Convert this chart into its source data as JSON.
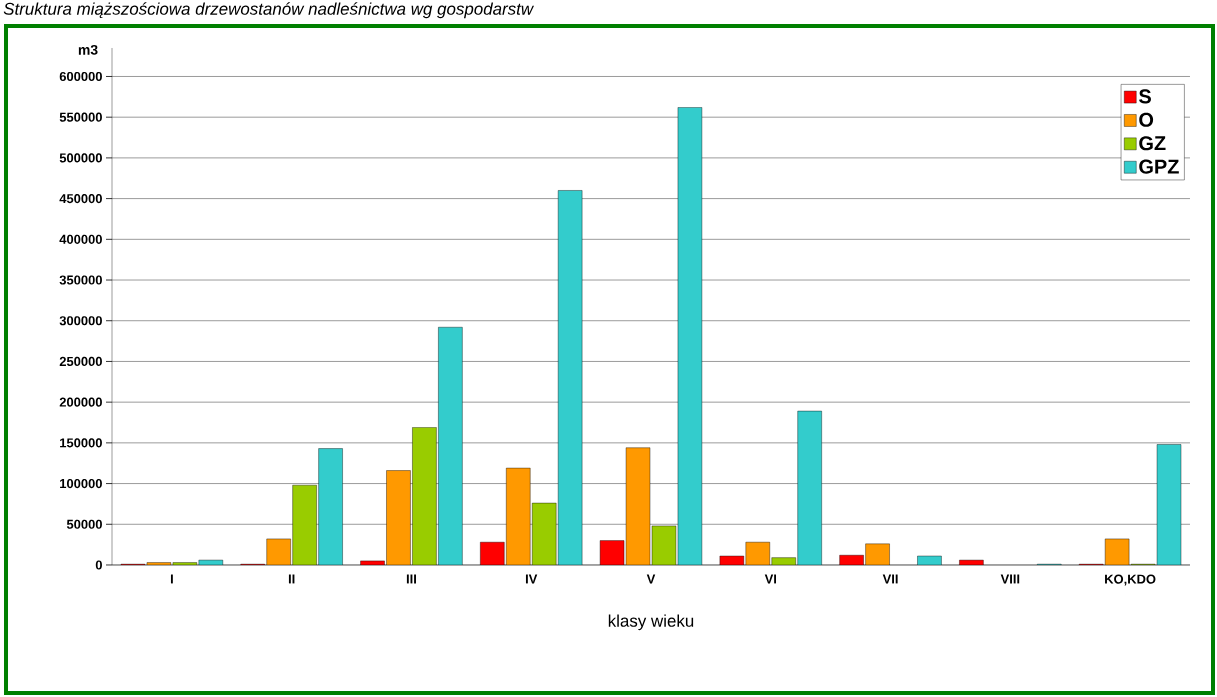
{
  "chart_data": {
    "type": "bar",
    "title": "Struktura miąższościowa drzewostanów nadleśnictwa wg gospodarstw",
    "xlabel": "klasy wieku",
    "ylabel": "m3",
    "categories": [
      "I",
      "II",
      "III",
      "IV",
      "V",
      "VI",
      "VII",
      "VIII",
      "KO,KDO"
    ],
    "series": [
      {
        "name": "S",
        "color": "#ff0000",
        "values": [
          1000,
          1000,
          5000,
          28000,
          30000,
          11000,
          12000,
          6000,
          1000
        ]
      },
      {
        "name": "O",
        "color": "#ff9900",
        "values": [
          3000,
          32000,
          116000,
          119000,
          144000,
          28000,
          26000,
          null,
          32000
        ]
      },
      {
        "name": "GZ",
        "color": "#99cc00",
        "values": [
          3000,
          98000,
          169000,
          76000,
          48000,
          9000,
          null,
          null,
          1000
        ]
      },
      {
        "name": "GPZ",
        "color": "#33cccc",
        "values": [
          6000,
          143000,
          292000,
          460000,
          562000,
          189000,
          11000,
          1000,
          148000
        ]
      }
    ],
    "ylim": [
      0,
      635000
    ],
    "yticks": [
      0,
      50000,
      100000,
      150000,
      200000,
      250000,
      300000,
      350000,
      400000,
      450000,
      500000,
      550000,
      600000
    ],
    "grid": "y",
    "legend": "top right"
  }
}
